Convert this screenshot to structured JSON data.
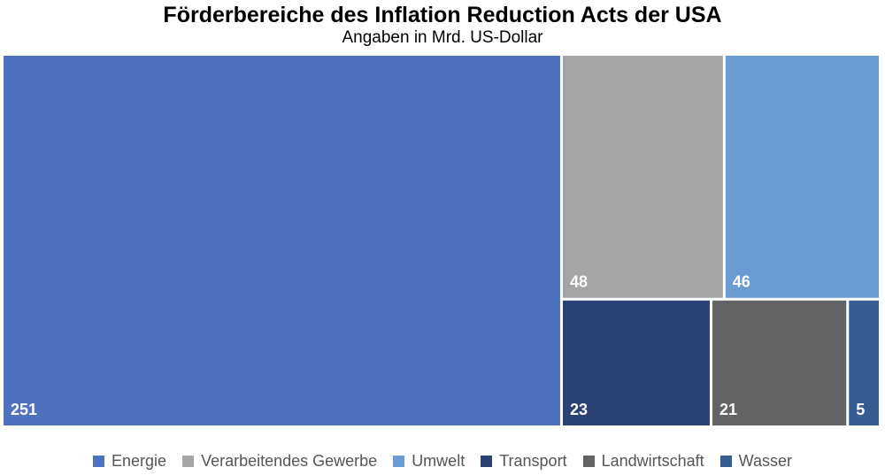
{
  "chart_data": {
    "type": "treemap",
    "title": "Förderbereiche des Inflation Reduction Acts der USA",
    "subtitle": "Angaben in Mrd. US-Dollar",
    "legend_position": "bottom",
    "items": [
      {
        "name": "Energie",
        "value": 251,
        "label": "251",
        "color": "#4f72be"
      },
      {
        "name": "Verarbeitendes Gewerbe",
        "value": 48,
        "label": "48",
        "color": "#a5a5a5"
      },
      {
        "name": "Umwelt",
        "value": 46,
        "label": "46",
        "color": "#6a9bd2"
      },
      {
        "name": "Transport",
        "value": 23,
        "label": "23",
        "color": "#2b4173"
      },
      {
        "name": "Landwirtschaft",
        "value": 21,
        "label": "21",
        "color": "#636363"
      },
      {
        "name": "Wasser",
        "value": 5,
        "label": "5",
        "color": "#355d91"
      }
    ]
  }
}
